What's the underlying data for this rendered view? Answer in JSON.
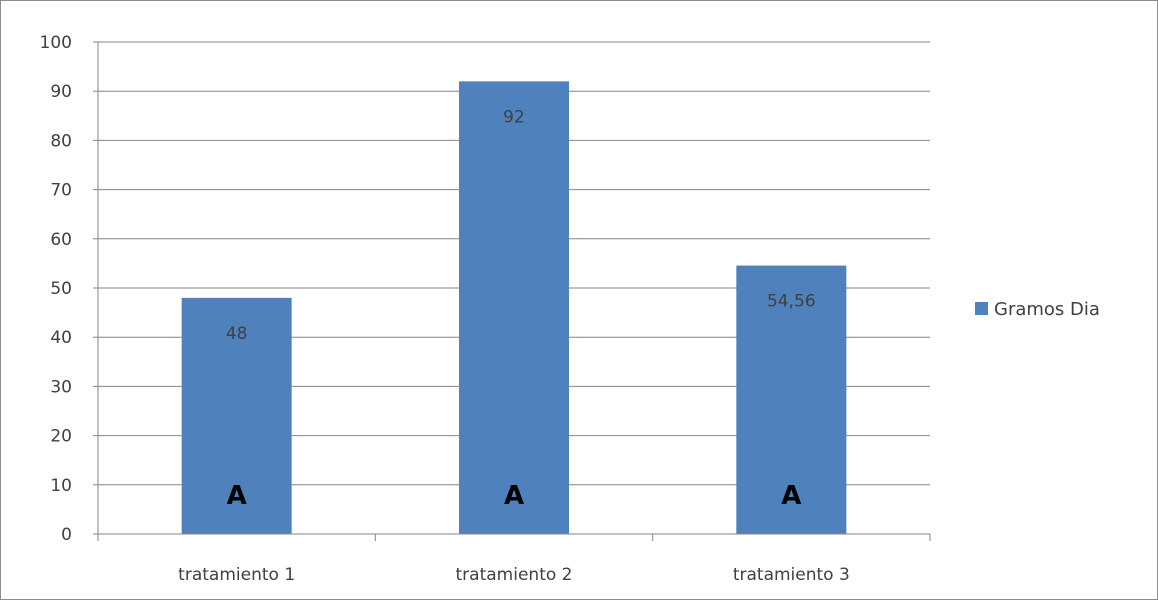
{
  "chart_data": {
    "type": "bar",
    "categories": [
      "tratamiento 1",
      "tratamiento 2",
      "tratamiento 3"
    ],
    "series": [
      {
        "name": "Gramos Dia",
        "values": [
          48,
          92,
          54.56
        ],
        "data_labels": [
          "48",
          "92",
          "54,56"
        ],
        "color": "#4f81bd"
      }
    ],
    "annotations": [
      "A",
      "A",
      "A"
    ],
    "ylim": [
      0,
      100
    ],
    "yticks": [
      "0",
      "10",
      "20",
      "30",
      "40",
      "50",
      "60",
      "70",
      "80",
      "90",
      "100"
    ],
    "title": "",
    "xlabel": "",
    "ylabel": "",
    "grid": true,
    "legend_position": "right"
  },
  "colors": {
    "bar": "#4f81bd",
    "grid": "#868686",
    "axis": "#868686",
    "text": "#404040"
  }
}
